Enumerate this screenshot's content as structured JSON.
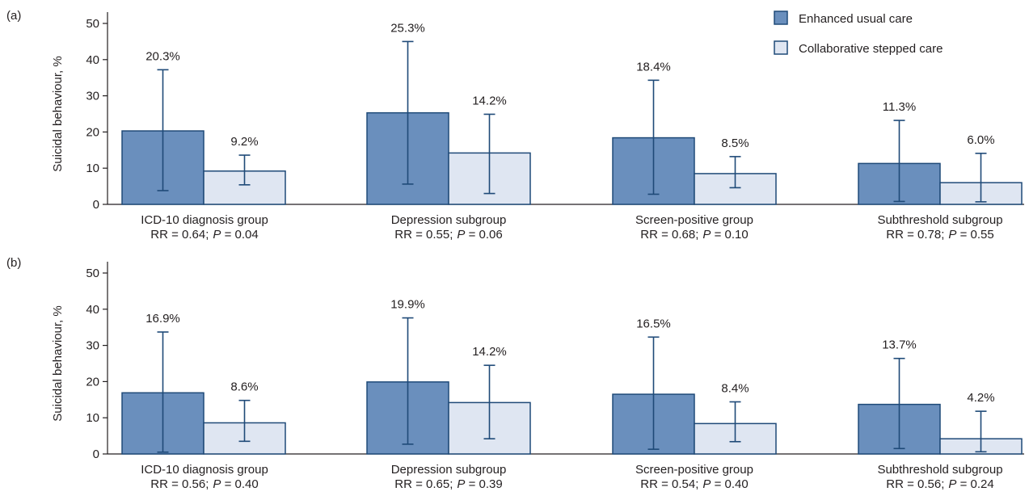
{
  "legend": [
    {
      "label": "Enhanced usual care",
      "color": "#6a8fbd"
    },
    {
      "label": "Collaborative stepped care",
      "color": "#dfe6f2"
    }
  ],
  "colors": {
    "stroke": "#1f4a78",
    "text": "#231f20",
    "axis": "#231f20"
  },
  "chart_data": [
    {
      "panel_label": "(a)",
      "type": "bar",
      "ylabel": "Suicidal behaviour, %",
      "ylim": [
        0,
        50
      ],
      "yticks": [
        0,
        10,
        20,
        30,
        40,
        50
      ],
      "legend_position": "top-right",
      "grid": false,
      "categories": [
        "ICD-10 diagnosis group",
        "Depression subgroup",
        "Screen-positive group",
        "Subthreshold subgroup"
      ],
      "stats": [
        {
          "rr": "RR = 0.64;",
          "p_label": "P",
          "p_value": " = 0.04"
        },
        {
          "rr": "RR = 0.55;",
          "p_label": "P",
          "p_value": " = 0.06"
        },
        {
          "rr": "RR = 0.68;",
          "p_label": "P",
          "p_value": " = 0.10"
        },
        {
          "rr": "RR = 0.78;",
          "p_label": "P",
          "p_value": " = 0.55"
        }
      ],
      "series": [
        {
          "name": "Enhanced usual care",
          "values": [
            20.3,
            25.3,
            18.4,
            11.3
          ],
          "labels": [
            "20.3%",
            "25.3%",
            "18.4%",
            "11.3%"
          ],
          "err_low": [
            3.8,
            5.6,
            2.8,
            0.8
          ],
          "err_high": [
            37.2,
            45.0,
            34.3,
            23.2
          ]
        },
        {
          "name": "Collaborative stepped care",
          "values": [
            9.2,
            14.2,
            8.5,
            6.0
          ],
          "labels": [
            "9.2%",
            "14.2%",
            "8.5%",
            "6.0%"
          ],
          "err_low": [
            5.4,
            3.0,
            4.6,
            0.7
          ],
          "err_high": [
            13.6,
            24.9,
            13.2,
            14.1
          ]
        }
      ]
    },
    {
      "panel_label": "(b)",
      "type": "bar",
      "ylabel": "Suicidal behaviour, %",
      "ylim": [
        0,
        50
      ],
      "yticks": [
        0,
        10,
        20,
        30,
        40,
        50
      ],
      "grid": false,
      "categories": [
        "ICD-10 diagnosis group",
        "Depression subgroup",
        "Screen-positive group",
        "Subthreshold subgroup"
      ],
      "stats": [
        {
          "rr": "RR = 0.56;",
          "p_label": "P",
          "p_value": " = 0.40"
        },
        {
          "rr": "RR = 0.65;",
          "p_label": "P",
          "p_value": " = 0.39"
        },
        {
          "rr": "RR = 0.54;",
          "p_label": "P",
          "p_value": " = 0.40"
        },
        {
          "rr": "RR = 0.56;",
          "p_label": "P",
          "p_value": " = 0.24"
        }
      ],
      "series": [
        {
          "name": "Enhanced usual care",
          "values": [
            16.9,
            19.9,
            16.5,
            13.7
          ],
          "labels": [
            "16.9%",
            "19.9%",
            "16.5%",
            "13.7%"
          ],
          "err_low": [
            0.5,
            2.7,
            1.3,
            1.5
          ],
          "err_high": [
            33.7,
            37.6,
            32.3,
            26.4
          ]
        },
        {
          "name": "Collaborative stepped care",
          "values": [
            8.6,
            14.2,
            8.4,
            4.2
          ],
          "labels": [
            "8.6%",
            "14.2%",
            "8.4%",
            "4.2%"
          ],
          "err_low": [
            3.5,
            4.2,
            3.4,
            0.6
          ],
          "err_high": [
            14.8,
            24.5,
            14.4,
            11.8
          ]
        }
      ]
    }
  ]
}
